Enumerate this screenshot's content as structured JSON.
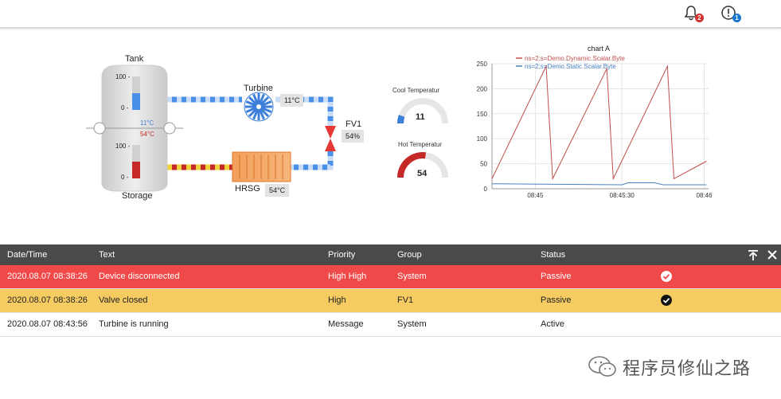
{
  "header": {
    "notifications": {
      "icon": "bell-icon",
      "count": "2",
      "color": "#d32f2f"
    },
    "alerts": {
      "icon": "alert-circle-icon",
      "count": "1",
      "color": "#1976d2"
    }
  },
  "diagram": {
    "tank": {
      "title": "Tank",
      "scale_top": "100 -",
      "scale_bottom": "0 -",
      "level_pct": 50,
      "fill_color": "#4a8fe8"
    },
    "storage": {
      "title": "Storage",
      "scale_top": "100 -",
      "scale_bottom": "0 -",
      "level_pct": 50,
      "fill_color": "#c62828"
    },
    "cold_temp_label": "11°C",
    "hot_temp_label": "54°C",
    "turbine": {
      "title": "Turbine",
      "value": "11°C"
    },
    "valve": {
      "title": "FV1",
      "value": "54%"
    },
    "hrsg": {
      "title": "HRSG",
      "value": "54°C"
    }
  },
  "gauges": [
    {
      "title": "Cool Temperatur",
      "value": "11",
      "fraction": 0.11,
      "color": "#3d7fd9"
    },
    {
      "title": "Hot Temperatur",
      "value": "54",
      "fraction": 0.54,
      "color": "#c62828"
    }
  ],
  "chart_data": {
    "type": "line",
    "title": "chart A",
    "ylim": [
      0,
      250
    ],
    "yticks": [
      "0",
      "50",
      "100",
      "150",
      "200",
      "250"
    ],
    "xticks": [
      "08:45",
      "08:45:30",
      "08:46"
    ],
    "grid": true,
    "legend_position": "top-left",
    "series": [
      {
        "name": "ns=2;s=Demo.Dynamic.Scalar.Byte",
        "color": "#c0504d",
        "x": [
          0,
          25,
          28,
          53,
          56,
          81,
          84,
          99
        ],
        "values": [
          20,
          245,
          20,
          240,
          20,
          245,
          20,
          55
        ]
      },
      {
        "name": "ns=2;s=Demo.Static.Scalar.Byte",
        "color": "#4a7fc1",
        "x": [
          0,
          60,
          63,
          75,
          79,
          99
        ],
        "values": [
          10,
          8,
          12,
          12,
          8,
          8
        ]
      }
    ]
  },
  "alarms": {
    "columns": [
      "Date/Time",
      "Text",
      "Priority",
      "Group",
      "Status"
    ],
    "rows": [
      {
        "date": "2020.08.07 08:38:26",
        "text": "Device disconnected",
        "priority": "High High",
        "group": "System",
        "status": "Passive"
      },
      {
        "date": "2020.08.07 08:38:26",
        "text": "Valve closed",
        "priority": "High",
        "group": "FV1",
        "status": "Passive"
      },
      {
        "date": "2020.08.07 08:43:56",
        "text": "Turbine is running",
        "priority": "Message",
        "group": "System",
        "status": "Active"
      }
    ]
  },
  "watermark": {
    "text": "程序员修仙之路"
  }
}
